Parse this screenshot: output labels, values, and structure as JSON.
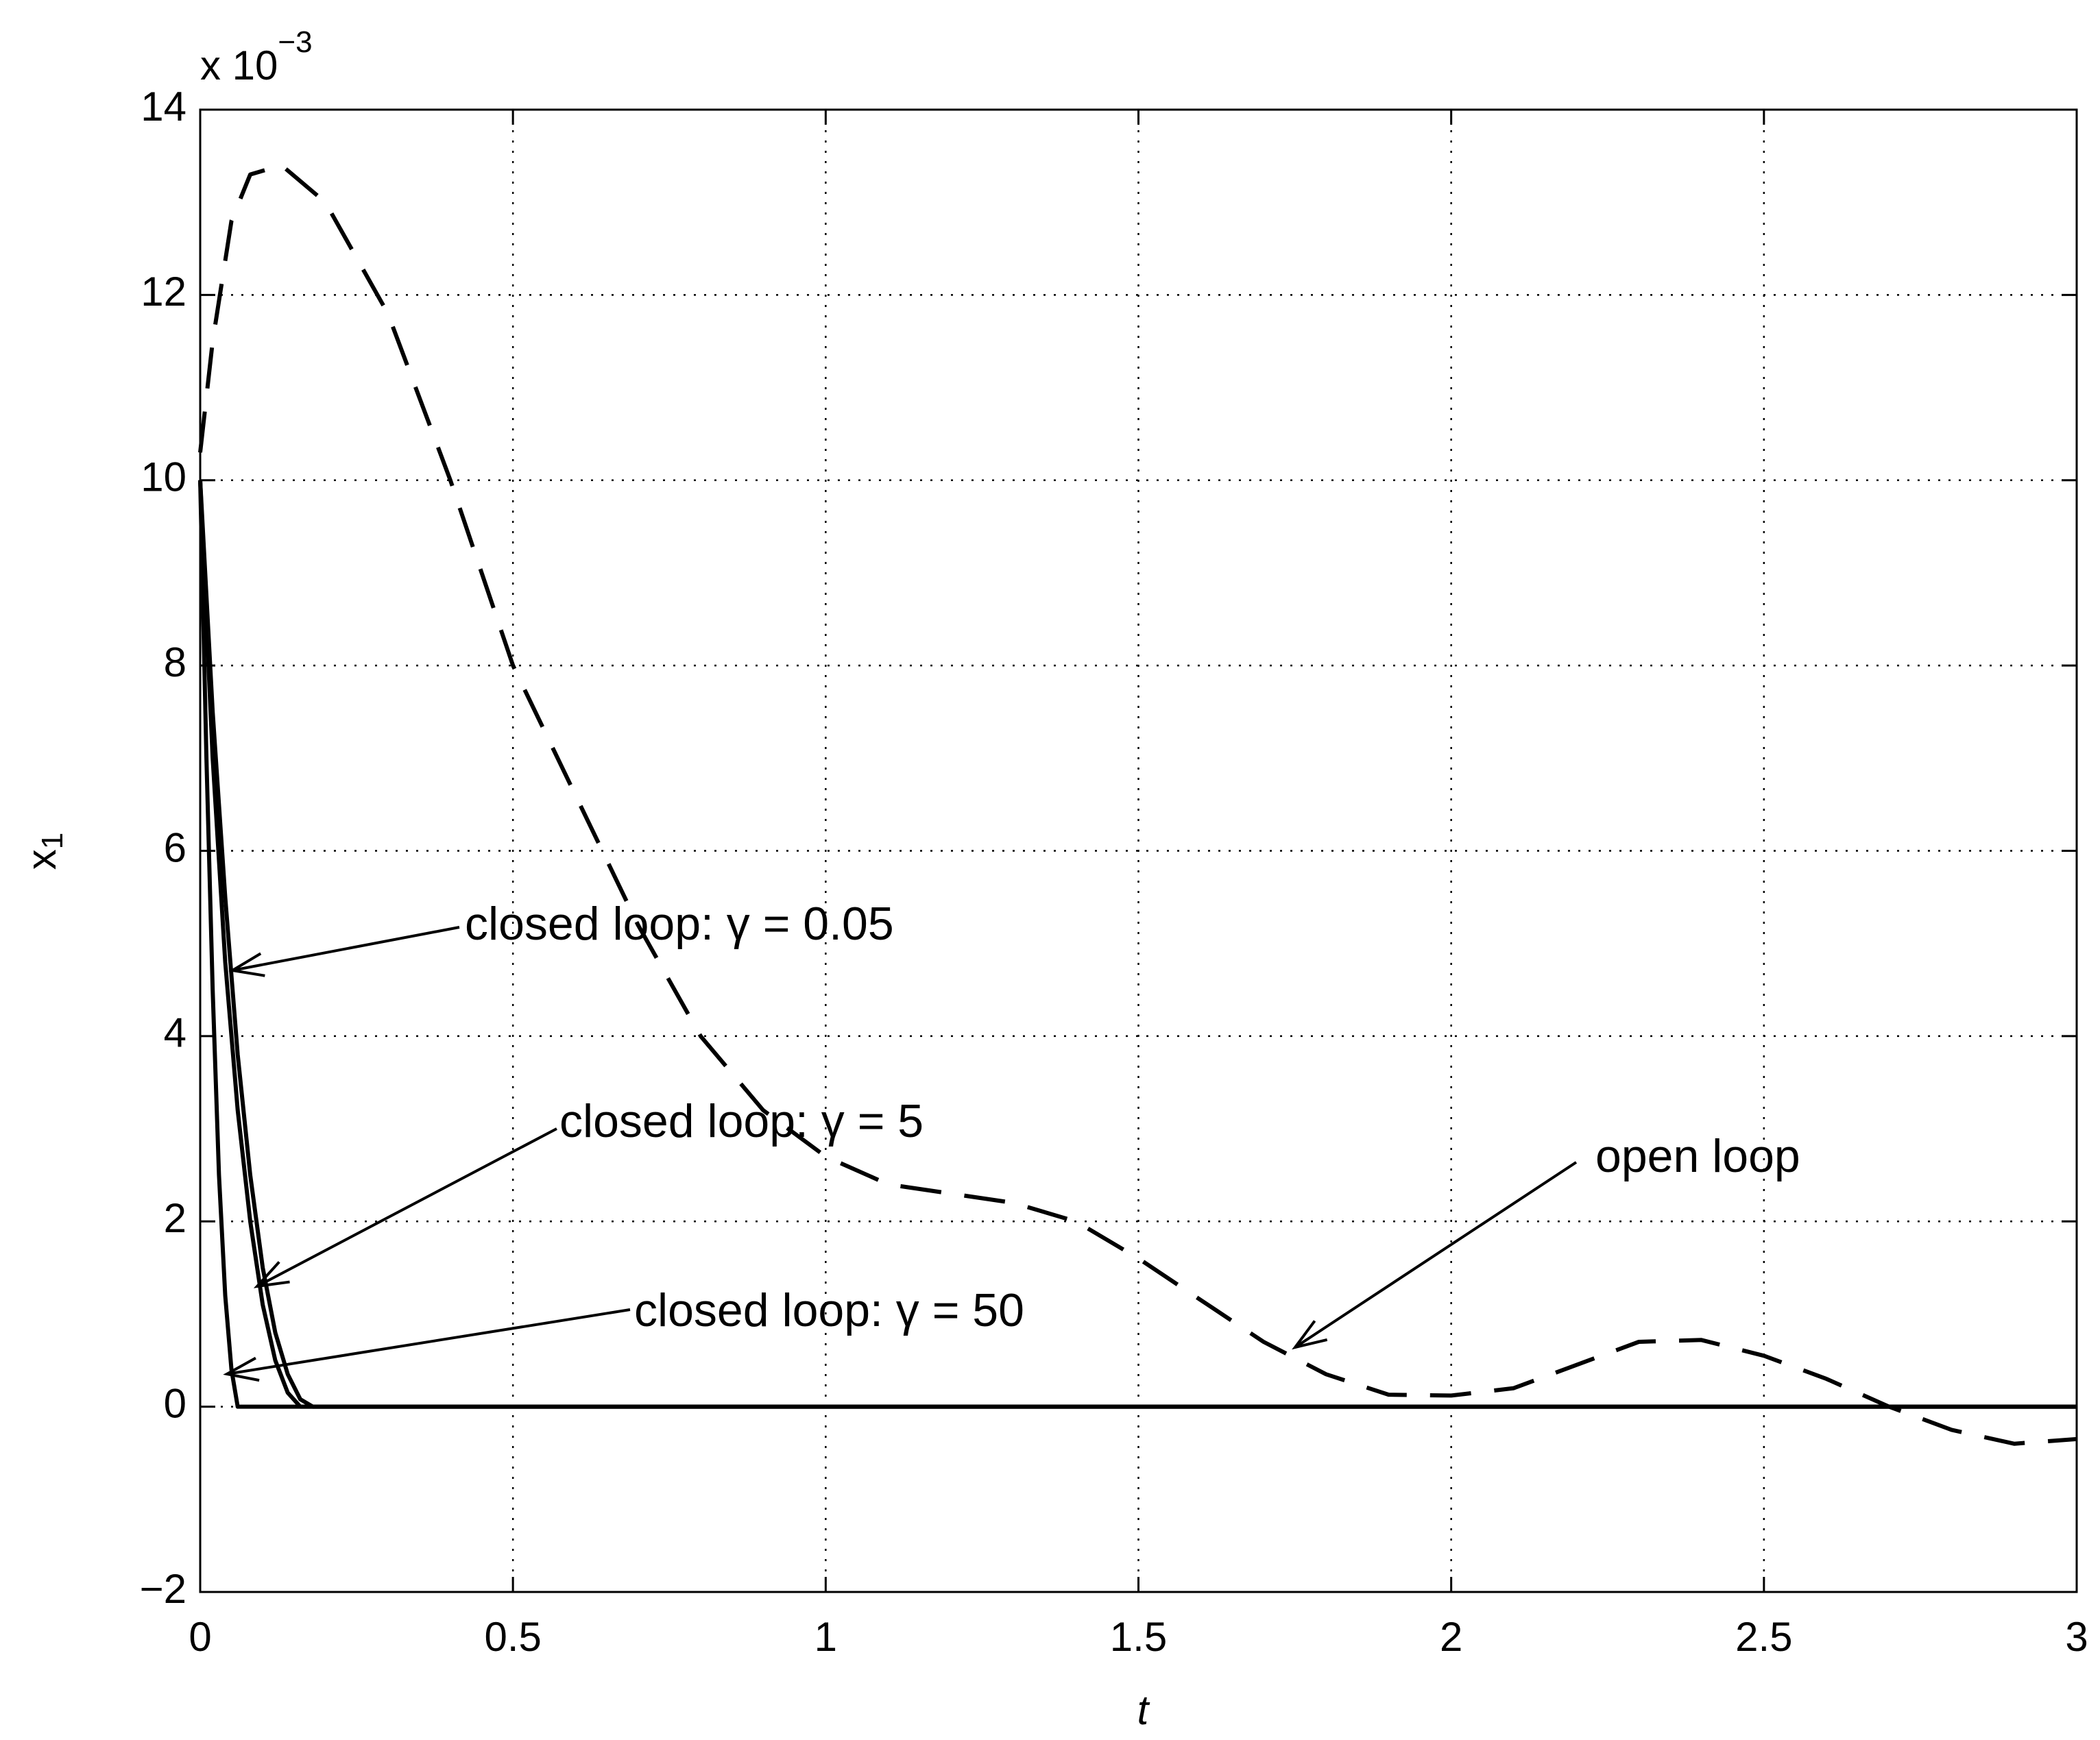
{
  "chart_data": {
    "type": "line",
    "x_label": "t",
    "y_label": "x",
    "y_label_sub": "1",
    "y_multiplier": "x 10",
    "y_multiplier_exp": "−3",
    "xlim": [
      0,
      3
    ],
    "ylim": [
      -2,
      14
    ],
    "xticks": [
      0,
      0.5,
      1,
      1.5,
      2,
      2.5,
      3
    ],
    "yticks": [
      {
        "value": -2,
        "label": "−2"
      },
      0,
      2,
      4,
      6,
      8,
      10,
      12,
      14
    ],
    "grid": true,
    "series": [
      {
        "name": "open loop",
        "color": "#000000",
        "dashed": true,
        "x": [
          0,
          0.02,
          0.05,
          0.08,
          0.13,
          0.2,
          0.3,
          0.4,
          0.5,
          0.6,
          0.7,
          0.8,
          0.9,
          1.0,
          1.1,
          1.2,
          1.3,
          1.4,
          1.5,
          1.6,
          1.7,
          1.8,
          1.9,
          2.0,
          2.1,
          2.2,
          2.3,
          2.4,
          2.5,
          2.6,
          2.7,
          2.8,
          2.9,
          3.0
        ],
        "values": [
          10.3,
          11.5,
          12.8,
          13.3,
          13.4,
          13.0,
          11.8,
          10.0,
          8.0,
          6.6,
          5.2,
          4.0,
          3.2,
          2.7,
          2.4,
          2.3,
          2.2,
          2.0,
          1.6,
          1.15,
          0.7,
          0.35,
          0.13,
          0.12,
          0.2,
          0.45,
          0.7,
          0.72,
          0.55,
          0.3,
          0.0,
          -0.25,
          -0.4,
          -0.35
        ]
      },
      {
        "name": "closed loop: γ = 0.05",
        "color": "#000000",
        "dashed": false,
        "x": [
          0,
          0.02,
          0.04,
          0.06,
          0.08,
          0.1,
          0.12,
          0.14,
          0.16,
          0.18,
          3
        ],
        "values": [
          10,
          7.5,
          5.5,
          3.8,
          2.5,
          1.5,
          0.8,
          0.35,
          0.08,
          0,
          0
        ]
      },
      {
        "name": "closed loop: γ = 5",
        "color": "#000000",
        "dashed": false,
        "x": [
          0,
          0.02,
          0.04,
          0.06,
          0.08,
          0.1,
          0.12,
          0.14,
          0.16,
          3
        ],
        "values": [
          10,
          7.0,
          4.8,
          3.2,
          2.0,
          1.1,
          0.5,
          0.15,
          0,
          0
        ]
      },
      {
        "name": "closed loop: γ = 50",
        "color": "#000000",
        "dashed": false,
        "x": [
          0,
          0.01,
          0.02,
          0.03,
          0.04,
          0.05,
          0.06,
          3
        ],
        "values": [
          10,
          7.0,
          4.5,
          2.5,
          1.2,
          0.4,
          0,
          0
        ]
      }
    ]
  }
}
